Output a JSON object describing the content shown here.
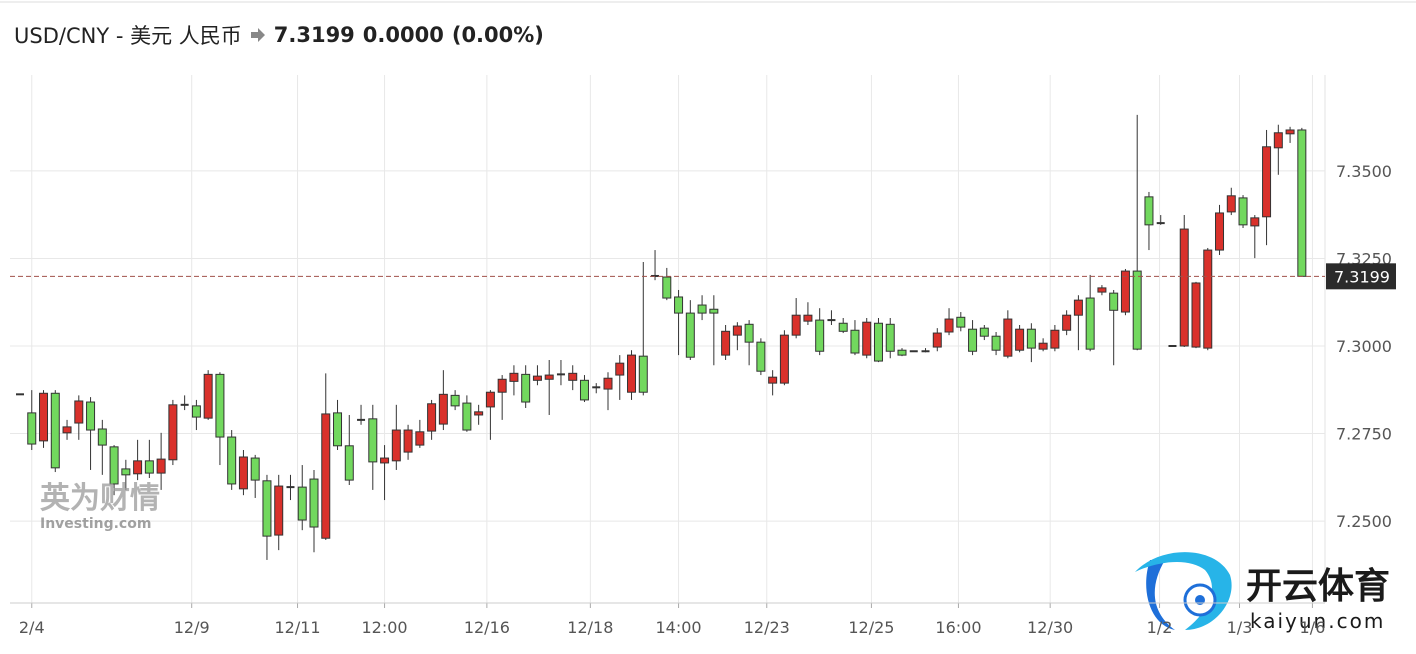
{
  "chart_data": {
    "type": "candlestick",
    "title": "USD/CNY - 美元 人民币",
    "price": 7.3199,
    "change": "0.0000",
    "change_pct": "(0.00%)",
    "watermarks": [
      "英为财情",
      "Investing.com",
      "开云体育",
      "kaiyun.com"
    ],
    "up_color": "#d9312b",
    "down_color": "#72d85e",
    "ylim": [
      7.2266,
      7.3774
    ],
    "yticks": [
      {
        "value": 7.25,
        "label": "7.2500"
      },
      {
        "value": 7.275,
        "label": "7.2750"
      },
      {
        "value": 7.3,
        "label": "7.3000"
      },
      {
        "value": 7.325,
        "label": "7.3250"
      },
      {
        "value": 7.35,
        "label": "7.3500"
      }
    ],
    "xticks": [
      {
        "value": 1,
        "label": "2/4"
      },
      {
        "value": 14.6,
        "label": "12/9"
      },
      {
        "value": 23.6,
        "label": "12/11"
      },
      {
        "value": 31,
        "label": "12:00"
      },
      {
        "value": 39.7,
        "label": "12/16"
      },
      {
        "value": 48.5,
        "label": "12/18"
      },
      {
        "value": 56,
        "label": "14:00"
      },
      {
        "value": 63.5,
        "label": "12/23"
      },
      {
        "value": 72.4,
        "label": "12/25"
      },
      {
        "value": 79.8,
        "label": "16:00"
      },
      {
        "value": 87.6,
        "label": "12/30"
      },
      {
        "value": 96.9,
        "label": "1/2"
      },
      {
        "value": 103.7,
        "label": "1/3"
      },
      {
        "value": 109.9,
        "label": "1/6"
      }
    ],
    "grid": true,
    "open": [
      7.2862,
      7.2809,
      7.2729,
      7.2865,
      7.2752,
      7.278,
      7.284,
      7.2763,
      7.2712,
      7.2649,
      7.2635,
      7.2672,
      7.2637,
      7.2675,
      7.2832,
      7.2829,
      7.2794,
      7.2919,
      7.274,
      7.2592,
      7.268,
      7.2615,
      7.246,
      7.2597,
      7.2597,
      7.262,
      7.2451,
      7.2809,
      7.2715,
      7.2789,
      7.2792,
      7.2666,
      7.2672,
      7.2697,
      7.2717,
      7.2757,
      7.2777,
      7.2859,
      7.2837,
      7.2803,
      7.2826,
      7.2868,
      7.2899,
      7.2919,
      7.2902,
      7.2905,
      7.2919,
      7.2902,
      7.2902,
      7.2882,
      7.2877,
      7.2917,
      7.2868,
      7.2971,
      7.32,
      7.3197,
      7.314,
      7.3094,
      7.3117,
      7.3105,
      7.2974,
      7.3031,
      7.3062,
      7.3011,
      7.2894,
      7.2894,
      7.3031,
      7.3071,
      7.3074,
      7.3074,
      7.3065,
      7.3045,
      7.2974,
      7.3065,
      7.3062,
      7.2988,
      7.2985,
      7.2985,
      7.2997,
      7.304,
      7.3082,
      7.3048,
      7.3051,
      7.3028,
      7.2971,
      7.2988,
      7.3048,
      7.2991,
      7.2994,
      7.3045,
      7.3088,
      7.3137,
      7.3154,
      7.3151,
      7.3097,
      7.3214,
      7.3426,
      7.3351,
      7.3,
      7.3,
      7.2997,
      7.2994,
      7.3274,
      7.3383,
      7.3423,
      7.3343,
      7.3369,
      7.3566,
      7.3606,
      7.3617
    ],
    "high": [
      7.2862,
      7.2874,
      7.2874,
      7.2874,
      7.2789,
      7.2859,
      7.2854,
      7.2789,
      7.2717,
      7.2675,
      7.2732,
      7.2732,
      7.2752,
      7.2846,
      7.2859,
      7.2846,
      7.2931,
      7.2925,
      7.276,
      7.2703,
      7.2689,
      7.2632,
      7.2632,
      7.2632,
      7.266,
      7.2646,
      7.2922,
      7.2846,
      7.2803,
      7.2832,
      7.2832,
      7.2717,
      7.2832,
      7.2775,
      7.2789,
      7.2846,
      7.2931,
      7.2874,
      7.2859,
      7.2832,
      7.2874,
      7.2917,
      7.2945,
      7.2945,
      7.2945,
      7.296,
      7.296,
      7.2945,
      7.2917,
      7.2894,
      7.2925,
      7.2974,
      7.2988,
      7.324,
      7.3274,
      7.3223,
      7.316,
      7.3131,
      7.3145,
      7.3145,
      7.306,
      7.3068,
      7.3074,
      7.3022,
      7.2931,
      7.3045,
      7.3137,
      7.3125,
      7.3108,
      7.3102,
      7.308,
      7.3074,
      7.308,
      7.308,
      7.308,
      7.2994,
      7.2985,
      7.2994,
      7.3051,
      7.3108,
      7.3097,
      7.3074,
      7.306,
      7.304,
      7.3102,
      7.306,
      7.3065,
      7.3022,
      7.306,
      7.3102,
      7.3145,
      7.3203,
      7.3174,
      7.316,
      7.322,
      7.366,
      7.344,
      7.3374,
      7.3,
      7.3374,
      7.3183,
      7.328,
      7.3403,
      7.3452,
      7.3431,
      7.3374,
      7.3617,
      7.3632,
      7.3626,
      7.3623
    ],
    "low": [
      7.2862,
      7.2703,
      7.2709,
      7.264,
      7.2732,
      7.2732,
      7.2646,
      7.2632,
      7.2574,
      7.2589,
      7.2617,
      7.2623,
      7.2589,
      7.266,
      7.2817,
      7.276,
      7.2789,
      7.266,
      7.2589,
      7.2574,
      7.2566,
      7.2389,
      7.2417,
      7.256,
      7.2474,
      7.2411,
      7.2446,
      7.2703,
      7.2603,
      7.2775,
      7.2589,
      7.256,
      7.2646,
      7.2675,
      7.2709,
      7.2732,
      7.276,
      7.2817,
      7.2755,
      7.2775,
      7.2732,
      7.2789,
      7.2859,
      7.2823,
      7.2888,
      7.2803,
      7.2888,
      7.2874,
      7.284,
      7.2865,
      7.2817,
      7.2846,
      7.2846,
      7.2859,
      7.3188,
      7.3131,
      7.2974,
      7.296,
      7.3074,
      7.2945,
      7.296,
      7.2988,
      7.2945,
      7.2917,
      7.2859,
      7.2888,
      7.3022,
      7.306,
      7.2974,
      7.306,
      7.3037,
      7.2974,
      7.2965,
      7.2954,
      7.2965,
      7.2971,
      7.2985,
      7.2982,
      7.2985,
      7.3031,
      7.3042,
      7.2974,
      7.3017,
      7.2974,
      7.2965,
      7.2982,
      7.2954,
      7.2985,
      7.2985,
      7.3031,
      7.2988,
      7.2985,
      7.3145,
      7.2945,
      7.3088,
      7.2988,
      7.3274,
      7.3346,
      7.3,
      7.2997,
      7.2994,
      7.2988,
      7.326,
      7.3374,
      7.3337,
      7.3251,
      7.3288,
      7.3489,
      7.358,
      7.3199
    ],
    "close": [
      7.2862,
      7.272,
      7.2865,
      7.2652,
      7.2769,
      7.2843,
      7.276,
      7.2717,
      7.2606,
      7.2632,
      7.2672,
      7.2637,
      7.2677,
      7.2832,
      7.2832,
      7.2797,
      7.2919,
      7.274,
      7.2606,
      7.2683,
      7.2617,
      7.2457,
      7.26,
      7.2597,
      7.2503,
      7.2483,
      7.2806,
      7.2715,
      7.2617,
      7.2789,
      7.2669,
      7.268,
      7.276,
      7.276,
      7.2755,
      7.2835,
      7.2862,
      7.2829,
      7.276,
      7.2812,
      7.2868,
      7.2905,
      7.2922,
      7.284,
      7.2914,
      7.2917,
      7.2919,
      7.2922,
      7.2846,
      7.2882,
      7.2908,
      7.2951,
      7.2974,
      7.2868,
      7.32,
      7.3137,
      7.3094,
      7.2968,
      7.3094,
      7.3094,
      7.3042,
      7.3057,
      7.3011,
      7.2928,
      7.2911,
      7.3031,
      7.3088,
      7.3088,
      7.2985,
      7.3074,
      7.3042,
      7.298,
      7.3068,
      7.2957,
      7.2985,
      7.2974,
      7.2985,
      7.2985,
      7.3037,
      7.3077,
      7.3054,
      7.2985,
      7.3028,
      7.2988,
      7.3077,
      7.3048,
      7.2994,
      7.3008,
      7.3045,
      7.3088,
      7.3131,
      7.2991,
      7.3166,
      7.3102,
      7.3214,
      7.2991,
      7.3346,
      7.3351,
      7.3,
      7.3334,
      7.318,
      7.3274,
      7.338,
      7.3429,
      7.3346,
      7.3366,
      7.3569,
      7.3609,
      7.3617,
      7.3199
    ]
  }
}
